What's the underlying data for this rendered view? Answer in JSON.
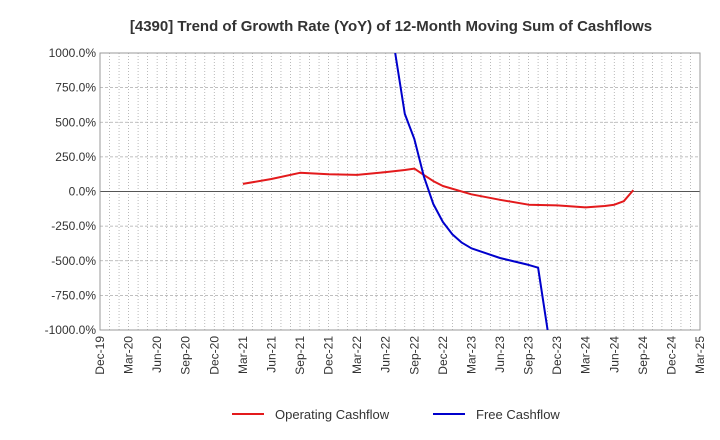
{
  "chart_data": {
    "type": "line",
    "title": "[4390]  Trend of Growth Rate (YoY) of 12-Month Moving Sum of Cashflows",
    "xlabel": "",
    "ylabel": "",
    "ylim": [
      -1000,
      1000
    ],
    "y_ticks": [
      "1000.0%",
      "750.0%",
      "500.0%",
      "250.0%",
      "0.0%",
      "-250.0%",
      "-500.0%",
      "-750.0%",
      "-1000.0%"
    ],
    "y_tick_values": [
      1000,
      750,
      500,
      250,
      0,
      -250,
      -500,
      -750,
      -1000
    ],
    "x_ticks": [
      "Dec-19",
      "Mar-20",
      "Jun-20",
      "Sep-20",
      "Dec-20",
      "Mar-21",
      "Jun-21",
      "Sep-21",
      "Dec-21",
      "Mar-22",
      "Jun-22",
      "Sep-22",
      "Dec-22",
      "Mar-23",
      "Jun-23",
      "Sep-23",
      "Dec-23",
      "Mar-24",
      "Jun-24",
      "Sep-24",
      "Dec-24",
      "Mar-25"
    ],
    "x_start": "2019-12",
    "grid": true,
    "legend_position": "bottom",
    "series": [
      {
        "name": "Operating Cashflow",
        "color": "#e31a1c",
        "points": [
          [
            "2021-03",
            55
          ],
          [
            "2021-06",
            90
          ],
          [
            "2021-09",
            135
          ],
          [
            "2021-12",
            125
          ],
          [
            "2022-03",
            120
          ],
          [
            "2022-06",
            140
          ],
          [
            "2022-08",
            155
          ],
          [
            "2022-09",
            165
          ],
          [
            "2022-10",
            120
          ],
          [
            "2022-11",
            75
          ],
          [
            "2022-12",
            40
          ],
          [
            "2023-03",
            -20
          ],
          [
            "2023-06",
            -60
          ],
          [
            "2023-09",
            -95
          ],
          [
            "2023-12",
            -100
          ],
          [
            "2024-03",
            -115
          ],
          [
            "2024-05",
            -105
          ],
          [
            "2024-06",
            -95
          ],
          [
            "2024-07",
            -70
          ],
          [
            "2024-08",
            10
          ]
        ]
      },
      {
        "name": "Free Cashflow",
        "color": "#0000cc",
        "points": [
          [
            "2022-07",
            1000
          ],
          [
            "2022-08",
            560
          ],
          [
            "2022-09",
            380
          ],
          [
            "2022-10",
            110
          ],
          [
            "2022-11",
            -90
          ],
          [
            "2022-12",
            -220
          ],
          [
            "2023-01",
            -310
          ],
          [
            "2023-02",
            -370
          ],
          [
            "2023-03",
            -410
          ],
          [
            "2023-06",
            -480
          ],
          [
            "2023-09",
            -530
          ],
          [
            "2023-10",
            -550
          ],
          [
            "2023-11",
            -1000
          ]
        ]
      }
    ]
  }
}
